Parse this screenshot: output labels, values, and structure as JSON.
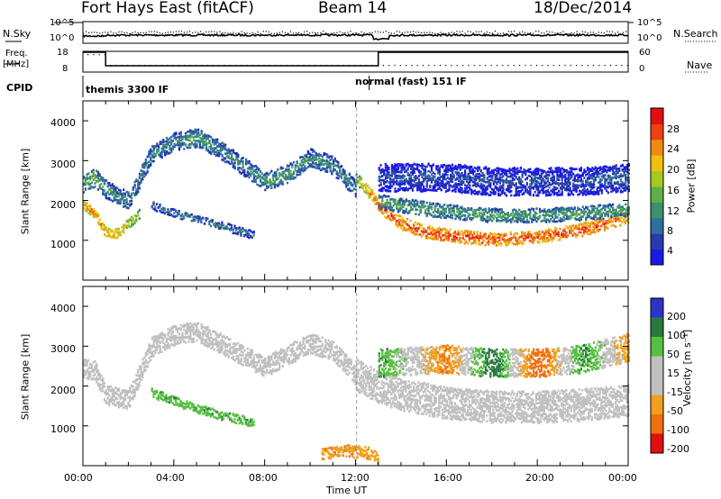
{
  "header": {
    "radar": "Fort Hays East (fitACF)",
    "beam": "Beam 14",
    "date": "18/Dec/2014"
  },
  "status_panels": {
    "nsky_label": "N.Sky",
    "nsearch_label": "N.Search",
    "freq_label": "Freq.",
    "freq_unit": "[MHz]",
    "nave_label": "Nave",
    "cpid_label": "CPID",
    "noise_ticks": [
      "10^5",
      "10^0"
    ],
    "freq_ticks": [
      "18",
      "8"
    ],
    "nave_ticks": [
      "60",
      "0"
    ],
    "cpid_segments": [
      {
        "start": "00:00",
        "label": "themis 3300 IF"
      },
      {
        "start": "12:00",
        "label": "normal (fast) 151 IF"
      }
    ]
  },
  "chart_data": [
    {
      "type": "heatmap",
      "name": "power",
      "ylabel": "Slant Range [km]",
      "ylim": [
        0,
        4500
      ],
      "yticks": [
        "1000",
        "2000",
        "3000",
        "4000"
      ],
      "xlim": [
        "00:00",
        "24:00"
      ],
      "colorbar_label": "Power [dB]",
      "colorbar_ticks": [
        "4",
        "8",
        "12",
        "16",
        "20",
        "24",
        "28"
      ],
      "colorbar_range": [
        0,
        30
      ],
      "colors": [
        "#1a1ae6",
        "#2a3aa8",
        "#2f6f9e",
        "#3f8f6a",
        "#5fb04a",
        "#a8c820",
        "#f0c010",
        "#f08a10",
        "#f04010",
        "#e01010"
      ],
      "bands": [
        {
          "name": "main-upper",
          "x": [
            0,
            0.5,
            1,
            2,
            3,
            4,
            5,
            6,
            7,
            8,
            9,
            10,
            11,
            12
          ],
          "y": [
            2450,
            2600,
            2300,
            2000,
            3200,
            3500,
            3600,
            3300,
            2900,
            2500,
            2700,
            3100,
            2900,
            2300
          ],
          "width": 450,
          "power": [
            12,
            14,
            10,
            10,
            10,
            10,
            12,
            10,
            10,
            12,
            12,
            10,
            10,
            10
          ]
        },
        {
          "name": "main-lower",
          "x": [
            0,
            0.5,
            1,
            1.5,
            2.5
          ],
          "y": [
            1900,
            1700,
            1200,
            1200,
            1700
          ],
          "width": 250,
          "power": [
            22,
            24,
            22,
            22,
            16
          ]
        },
        {
          "name": "e-region-echo",
          "x": [
            3,
            4,
            5,
            6,
            7.5
          ],
          "y": [
            1900,
            1700,
            1550,
            1400,
            1150
          ],
          "width": 200,
          "power": [
            8,
            10,
            10,
            10,
            8
          ]
        },
        {
          "name": "night-band",
          "x": [
            12,
            12.5,
            13,
            13.5,
            14,
            15,
            16,
            17,
            18,
            19,
            20,
            21,
            22,
            23,
            24
          ],
          "y": [
            2600,
            2300,
            1900,
            1650,
            1450,
            1250,
            1150,
            1100,
            1050,
            1080,
            1120,
            1200,
            1300,
            1450,
            1600
          ],
          "width": 320,
          "power": [
            16,
            22,
            26,
            26,
            26,
            26,
            26,
            26,
            26,
            26,
            26,
            26,
            26,
            26,
            22
          ]
        },
        {
          "name": "night-green",
          "x": [
            13,
            14,
            16,
            18,
            20,
            22,
            24
          ],
          "y": [
            2000,
            1900,
            1750,
            1650,
            1650,
            1700,
            1800
          ],
          "width": 350,
          "power": [
            12,
            12,
            12,
            12,
            12,
            12,
            12
          ]
        },
        {
          "name": "night-scatter",
          "x": [
            13,
            16,
            18,
            20,
            22,
            24
          ],
          "y": [
            2600,
            2600,
            2500,
            2500,
            2500,
            2600
          ],
          "width": 700,
          "power": [
            6,
            6,
            6,
            6,
            6,
            8
          ]
        }
      ]
    },
    {
      "type": "heatmap",
      "name": "velocity",
      "xlabel": "Time UT",
      "ylabel": "Slant Range [km]",
      "ylim": [
        0,
        4500
      ],
      "yticks": [
        "1000",
        "2000",
        "3000",
        "4000"
      ],
      "xticks": [
        "00:00",
        "04:00",
        "08:00",
        "12:00",
        "16:00",
        "20:00",
        "00:00"
      ],
      "colorbar_label": "Velocity [m s⁻¹]",
      "colorbar_ticks": [
        "200",
        "100",
        "50",
        "15",
        "-15",
        "-50",
        "-100",
        "-200"
      ],
      "colorbar_range": [
        -250,
        250
      ],
      "ground_scatter_color": "#c0c0c0",
      "colors": [
        "#2a35c8",
        "#2a7a40",
        "#55c040",
        "#c0c0c0",
        "#c0c0c0",
        "#f0a020",
        "#f07010",
        "#e01010"
      ],
      "bands": [
        {
          "name": "ground-scatter-day",
          "x": [
            0,
            0.5,
            1,
            2,
            3,
            4,
            5,
            6,
            7,
            8,
            9,
            10,
            11,
            12
          ],
          "y": [
            2450,
            2400,
            1800,
            1700,
            3000,
            3300,
            3400,
            3100,
            2800,
            2500,
            2800,
            3100,
            2900,
            2300
          ],
          "width": 500,
          "velocity": [
            0,
            0,
            0,
            0,
            0,
            0,
            0,
            0,
            0,
            0,
            0,
            0,
            0,
            0
          ]
        },
        {
          "name": "green-echo",
          "x": [
            3,
            4,
            5,
            6,
            7.5
          ],
          "y": [
            1850,
            1650,
            1450,
            1300,
            1100
          ],
          "width": 220,
          "velocity": [
            60,
            60,
            60,
            60,
            60
          ]
        },
        {
          "name": "ground-scatter-night",
          "x": [
            12,
            13,
            14,
            16,
            18,
            20,
            22,
            24
          ],
          "y": [
            2300,
            2000,
            1800,
            1600,
            1500,
            1500,
            1550,
            1650
          ],
          "width": 800,
          "velocity": [
            0,
            0,
            0,
            0,
            0,
            0,
            0,
            0
          ]
        },
        {
          "name": "negative-low",
          "x": [
            10.5,
            11.5,
            12.5,
            13
          ],
          "y": [
            300,
            400,
            350,
            200
          ],
          "width": 300,
          "velocity": [
            -60,
            -60,
            -60,
            -60
          ]
        },
        {
          "name": "scatter-high",
          "x": [
            13,
            16,
            18,
            20,
            22,
            24
          ],
          "y": [
            2600,
            2700,
            2600,
            2600,
            2700,
            3000
          ],
          "width": 700,
          "velocity": [
            80,
            -80,
            120,
            -120,
            80,
            -60
          ]
        }
      ]
    }
  ]
}
